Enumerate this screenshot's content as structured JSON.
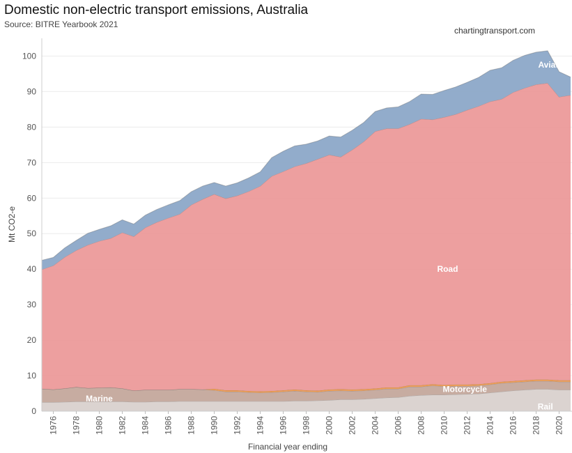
{
  "header": {
    "title": "Domestic non-electric transport emissions, Australia",
    "subtitle": "Source: BITRE Yearbook 2021",
    "credit": "chartingtransport.com"
  },
  "chart_data": {
    "type": "area",
    "stacked": true,
    "xlabel": "Financial year ending",
    "ylabel": "Mt CO2-e",
    "xlim": [
      1975,
      2021
    ],
    "ylim": [
      0,
      105
    ],
    "x_ticks": [
      1976,
      1978,
      1980,
      1982,
      1984,
      1986,
      1988,
      1990,
      1992,
      1994,
      1996,
      1998,
      2000,
      2002,
      2004,
      2006,
      2008,
      2010,
      2012,
      2014,
      2016,
      2018,
      2020
    ],
    "y_ticks": [
      0,
      10,
      20,
      30,
      40,
      50,
      60,
      70,
      80,
      90,
      100
    ],
    "grid": "horizontal",
    "x": [
      1975,
      1976,
      1977,
      1978,
      1979,
      1980,
      1981,
      1982,
      1983,
      1984,
      1985,
      1986,
      1987,
      1988,
      1989,
      1990,
      1991,
      1992,
      1993,
      1994,
      1995,
      1996,
      1997,
      1998,
      1999,
      2000,
      2001,
      2002,
      2003,
      2004,
      2005,
      2006,
      2007,
      2008,
      2009,
      2010,
      2011,
      2012,
      2013,
      2014,
      2015,
      2016,
      2017,
      2018,
      2019,
      2020,
      2021
    ],
    "series": [
      {
        "name": "Rail",
        "color": "#d9d1cd",
        "values": [
          2.5,
          2.5,
          2.6,
          2.7,
          2.7,
          2.7,
          2.7,
          2.7,
          2.6,
          2.6,
          2.7,
          2.7,
          2.8,
          2.8,
          2.8,
          2.8,
          2.8,
          2.8,
          2.8,
          2.8,
          2.8,
          2.8,
          2.9,
          2.9,
          3.0,
          3.1,
          3.3,
          3.3,
          3.4,
          3.6,
          3.8,
          3.9,
          4.3,
          4.5,
          4.6,
          4.6,
          4.7,
          4.8,
          4.9,
          5.2,
          5.5,
          5.8,
          6.0,
          6.2,
          6.2,
          6.0,
          6.0
        ]
      },
      {
        "name": "Marine",
        "color": "#c4a89c",
        "values": [
          3.8,
          3.6,
          3.8,
          4.1,
          3.8,
          3.9,
          4.0,
          3.7,
          3.2,
          3.4,
          3.3,
          3.3,
          3.4,
          3.4,
          3.3,
          3.1,
          2.7,
          2.7,
          2.5,
          2.4,
          2.5,
          2.7,
          2.8,
          2.6,
          2.4,
          2.6,
          2.5,
          2.4,
          2.4,
          2.4,
          2.5,
          2.4,
          2.6,
          2.4,
          2.6,
          2.4,
          2.4,
          2.3,
          2.3,
          2.3,
          2.4,
          2.3,
          2.3,
          2.3,
          2.3,
          2.3,
          2.3
        ]
      },
      {
        "name": "Motorcycle",
        "color": "#f39a4a",
        "values": [
          0,
          0,
          0,
          0,
          0,
          0,
          0,
          0,
          0,
          0,
          0,
          0,
          0,
          0,
          0,
          0.4,
          0.4,
          0.4,
          0.4,
          0.4,
          0.4,
          0.4,
          0.4,
          0.4,
          0.4,
          0.4,
          0.4,
          0.4,
          0.4,
          0.4,
          0.4,
          0.4,
          0.4,
          0.4,
          0.4,
          0.4,
          0.4,
          0.4,
          0.4,
          0.4,
          0.4,
          0.4,
          0.4,
          0.4,
          0.4,
          0.4,
          0.4
        ]
      },
      {
        "name": "Road",
        "color": "#ec9a9a",
        "values": [
          33.6,
          34.9,
          37.0,
          38.5,
          40.3,
          41.3,
          42.0,
          43.9,
          43.4,
          45.7,
          47.2,
          48.4,
          49.3,
          51.9,
          53.6,
          54.8,
          54.0,
          54.8,
          56.2,
          57.8,
          60.5,
          61.6,
          62.8,
          63.9,
          65.2,
          66.1,
          65.4,
          67.5,
          69.7,
          72.4,
          72.9,
          72.9,
          73.5,
          75.0,
          74.5,
          75.4,
          76.1,
          77.3,
          78.3,
          79.3,
          79.6,
          81.3,
          82.3,
          83.1,
          83.5,
          79.8,
          80.3
        ]
      },
      {
        "name": "Aviation",
        "color": "#8ca8c8",
        "values": [
          2.6,
          2.3,
          2.6,
          2.8,
          3.3,
          3.3,
          3.5,
          3.6,
          3.5,
          3.5,
          3.6,
          3.7,
          3.8,
          3.7,
          3.7,
          3.3,
          3.5,
          3.6,
          3.8,
          4.0,
          5.2,
          5.7,
          5.8,
          5.4,
          5.1,
          5.3,
          5.6,
          5.5,
          5.4,
          5.6,
          5.8,
          6.1,
          6.4,
          7.0,
          7.1,
          7.5,
          7.7,
          7.8,
          8.1,
          8.8,
          8.8,
          9.0,
          9.2,
          9.1,
          9.1,
          7.1,
          5.1
        ]
      }
    ],
    "series_labels": [
      {
        "name": "Aviation",
        "x": 2019.6,
        "y": 97.5
      },
      {
        "name": "Road",
        "x": 2010.3,
        "y": 40
      },
      {
        "name": "Motorcycle",
        "x": 2011.8,
        "y": 6.2
      },
      {
        "name": "Marine",
        "x": 1980,
        "y": 3.5
      },
      {
        "name": "Rail",
        "x": 2018.8,
        "y": 1.3
      }
    ]
  }
}
